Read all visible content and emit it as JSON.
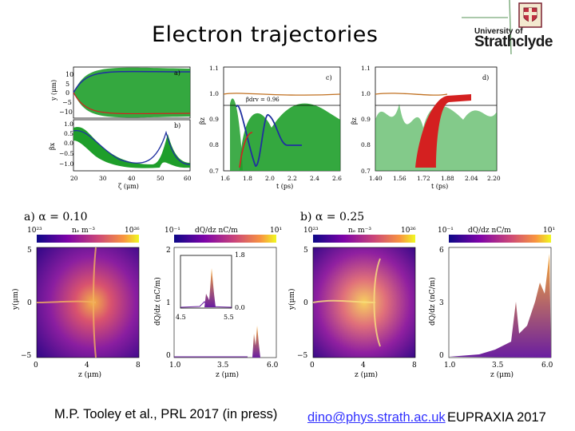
{
  "slide": {
    "title": "Electron trajectories",
    "logo_line1": "University of",
    "logo_line2": "Strathclyde",
    "citation": "M.P. Tooley et al., PRL 2017 (in press)",
    "email": "dino@phys.strath.ac.uk",
    "event": "EUPRAXIA 2017"
  },
  "colors": {
    "trajectory_green": "#1e9e2a",
    "highlight_blue": "#2030a0",
    "highlight_red": "#d42020",
    "accent_brown": "#c07020"
  },
  "top_figure": {
    "panel_a": {
      "label": "a)",
      "ylabel": "y (μm)",
      "yticks": [
        "10",
        "5",
        "0",
        "−5",
        "−10"
      ]
    },
    "panel_b": {
      "label": "b)",
      "ylabel": "βx",
      "yticks": [
        "1.0",
        "0.5",
        "0.0",
        "−0.5",
        "−1.0"
      ],
      "xticks": [
        "20",
        "30",
        "40",
        "50",
        "60"
      ],
      "xlabel": "ζ (μm)"
    },
    "panel_c": {
      "label": "c)",
      "ylabel": "βz",
      "annotation": "βdrv = 0.96",
      "yticks": [
        "1.1",
        "1.0",
        "0.9",
        "0.8",
        "0.7"
      ],
      "xticks": [
        "1.6",
        "1.8",
        "2.0",
        "2.2",
        "2.4",
        "2.6"
      ],
      "xlabel": "t (ps)"
    },
    "panel_d": {
      "label": "d)",
      "ylabel": "βz",
      "yticks": [
        "1.1",
        "1.0",
        "0.9",
        "0.8",
        "0.7"
      ],
      "xticks": [
        "1.40",
        "1.56",
        "1.72",
        "1.88",
        "2.04",
        "2.20"
      ],
      "xlabel": "t (ps)"
    }
  },
  "bottom_figure": {
    "case_a": {
      "label": "a) α = 0.10",
      "density": {
        "cbar_min": "10²³",
        "cbar_label": "nₑ m⁻³",
        "cbar_max": "10²⁶",
        "yticks": [
          "5",
          "0",
          "−5"
        ],
        "xticks": [
          "0",
          "4",
          "8"
        ],
        "xlabel": "z (μm)",
        "ylabel": "y(μm)"
      },
      "spectrum": {
        "cbar_min": "10⁻¹",
        "cbar_label": "dQ/dz nC/m",
        "cbar_max": "10¹",
        "yticks": [
          "2",
          "1",
          "0"
        ],
        "xticks": [
          "1.0",
          "3.5",
          "6.0"
        ],
        "xlabel": "z (μm)",
        "ylabel": "dQ/dz (nC/m)",
        "inset_y_top": "1.8",
        "inset_y_bottom": "0.0",
        "inset_x_left": "4.5",
        "inset_x_right": "5.5"
      }
    },
    "case_b": {
      "label": "b) α = 0.25",
      "density": {
        "cbar_min": "10²³",
        "cbar_label": "nₑ m⁻³",
        "cbar_max": "10²⁶",
        "yticks": [
          "5",
          "0",
          "−5"
        ],
        "xticks": [
          "0",
          "4",
          "8"
        ],
        "xlabel": "z (μm)",
        "ylabel": "y(μm)"
      },
      "spectrum": {
        "cbar_min": "10⁻¹",
        "cbar_label": "dQ/dz nC/m",
        "cbar_max": "10¹",
        "yticks": [
          "6",
          "3",
          "0"
        ],
        "xticks": [
          "1.0",
          "3.5",
          "6.0"
        ],
        "xlabel": "z (μm)",
        "ylabel": "dQ/dz (nC/m)"
      }
    }
  }
}
